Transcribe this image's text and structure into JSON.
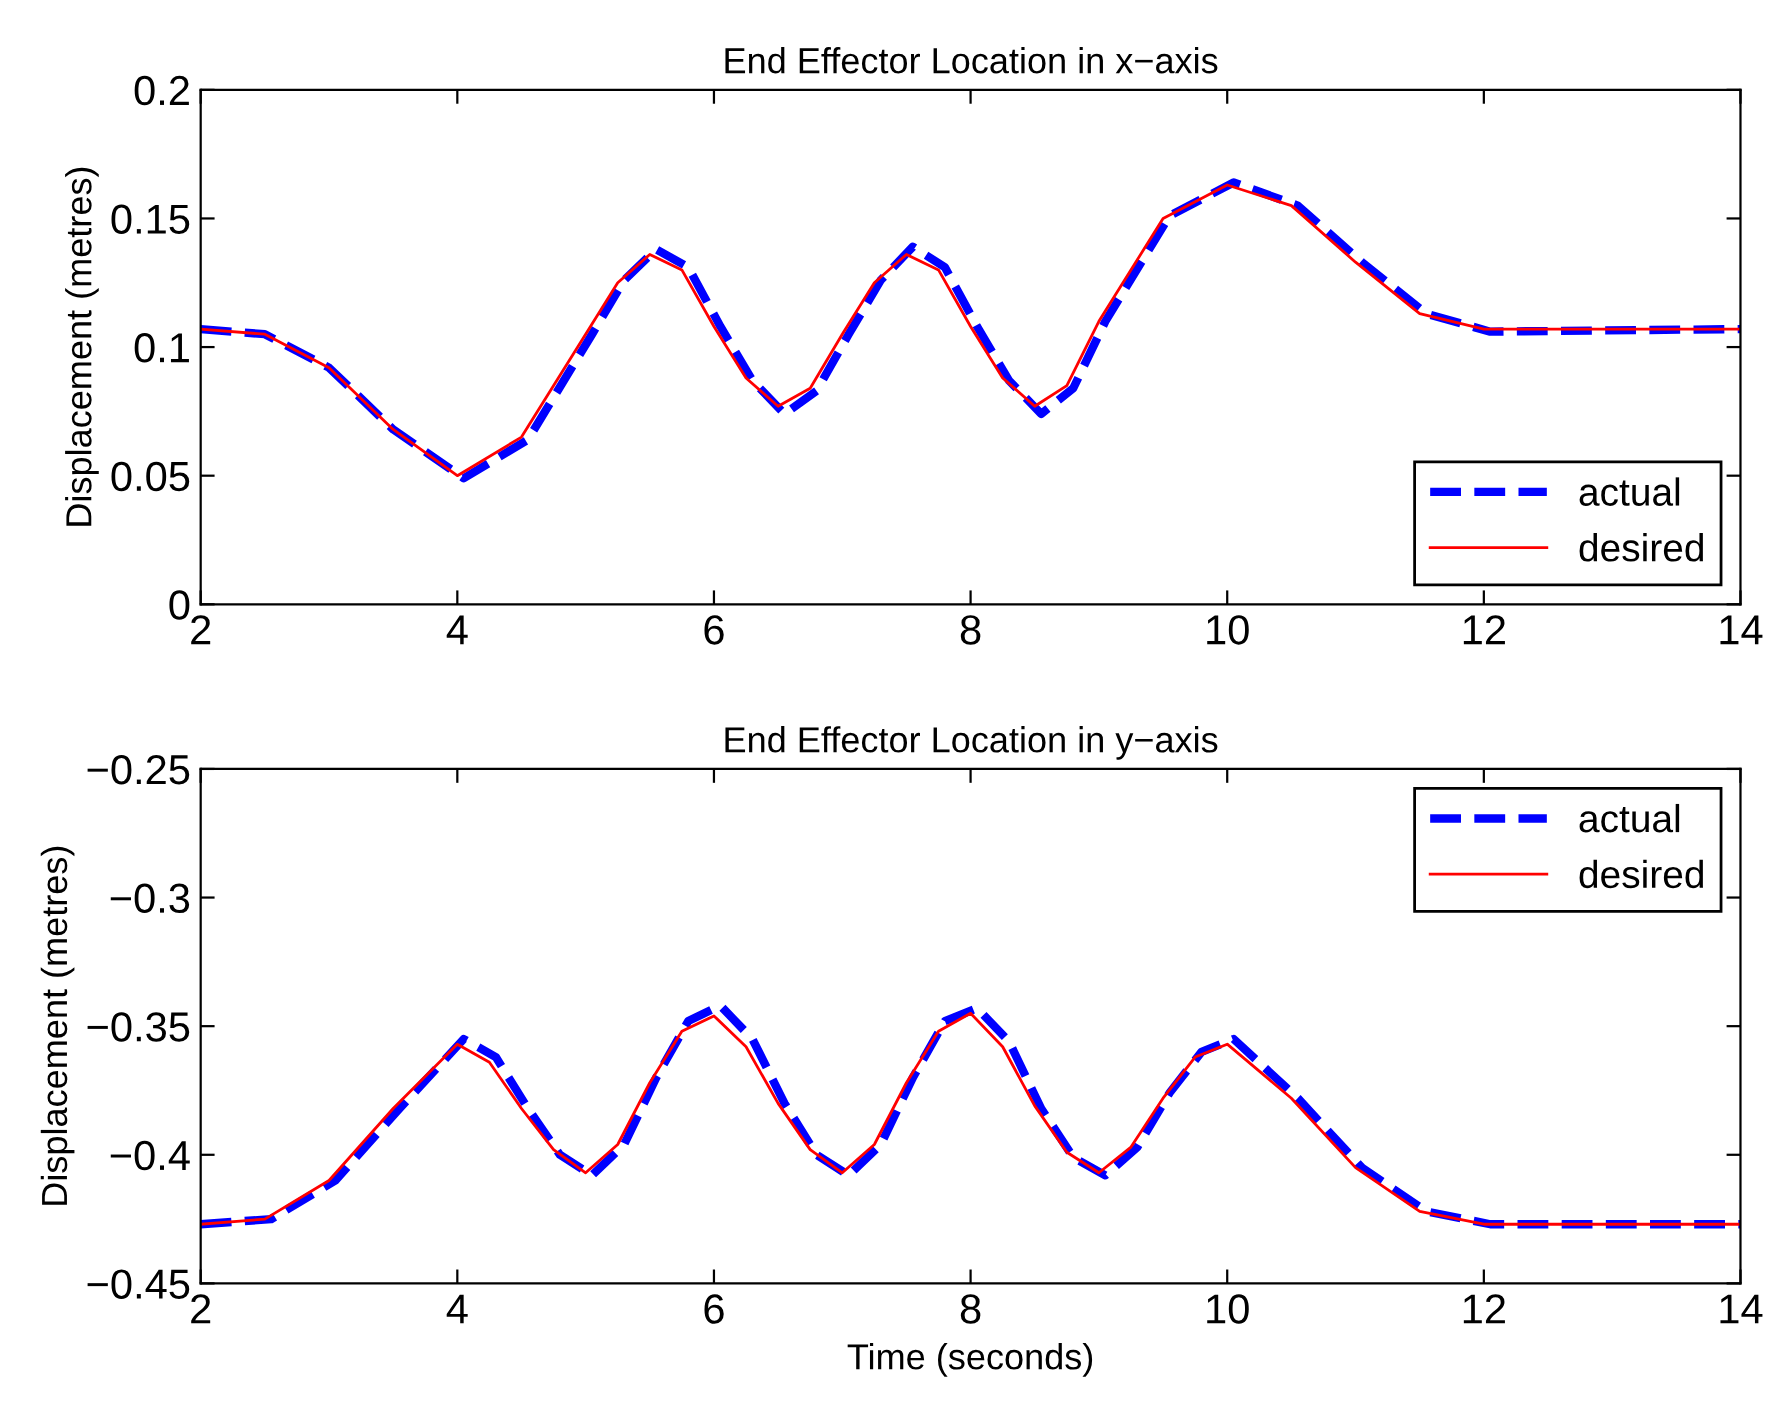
{
  "chart_data": [
    {
      "type": "line",
      "title": "End Effector Location in x−axis",
      "ylabel": "Displacement (metres)",
      "xlim": [
        2,
        14
      ],
      "xticks": [
        2,
        4,
        6,
        8,
        10,
        12,
        14
      ],
      "ylim": [
        0,
        0.2
      ],
      "yticks": [
        0,
        0.05,
        0.1,
        0.15,
        0.2
      ],
      "legend": "bottom right",
      "grid": false,
      "series": [
        {
          "name": "actual",
          "color": "#0000ff",
          "line_style": "dashed",
          "x": [
            2,
            2.5,
            3,
            3.5,
            4.05,
            4.55,
            5.05,
            5.3,
            5.55,
            5.8,
            6.05,
            6.3,
            6.55,
            6.8,
            7.05,
            7.3,
            7.55,
            7.8,
            8.05,
            8.3,
            8.55,
            8.8,
            9.05,
            9.55,
            10.05,
            10.55,
            11.05,
            11.55,
            12.05,
            14
          ],
          "values": [
            0.107,
            0.105,
            0.092,
            0.068,
            0.049,
            0.064,
            0.105,
            0.126,
            0.138,
            0.131,
            0.108,
            0.087,
            0.074,
            0.083,
            0.105,
            0.126,
            0.139,
            0.131,
            0.108,
            0.087,
            0.074,
            0.084,
            0.11,
            0.151,
            0.164,
            0.155,
            0.133,
            0.113,
            0.106,
            0.107
          ]
        },
        {
          "name": "desired",
          "color": "#ff0000",
          "line_style": "solid",
          "x": [
            2,
            2.5,
            3,
            3.5,
            4,
            4.5,
            5,
            5.25,
            5.5,
            5.75,
            6,
            6.25,
            6.5,
            6.75,
            7,
            7.25,
            7.5,
            7.75,
            8,
            8.25,
            8.5,
            8.75,
            9,
            9.5,
            10,
            10.5,
            11,
            11.5,
            12,
            14
          ],
          "values": [
            0.107,
            0.105,
            0.092,
            0.068,
            0.05,
            0.065,
            0.105,
            0.125,
            0.136,
            0.13,
            0.108,
            0.088,
            0.077,
            0.084,
            0.105,
            0.125,
            0.136,
            0.13,
            0.108,
            0.088,
            0.077,
            0.085,
            0.11,
            0.15,
            0.163,
            0.155,
            0.133,
            0.113,
            0.107,
            0.107
          ]
        }
      ]
    },
    {
      "type": "line",
      "title": "End Effector Location in y−axis",
      "xlabel": "Time (seconds)",
      "ylabel": "Displacement (metres)",
      "xlim": [
        2,
        14
      ],
      "xticks": [
        2,
        4,
        6,
        8,
        10,
        12,
        14
      ],
      "ylim": [
        -0.45,
        -0.25
      ],
      "yticks": [
        -0.45,
        -0.4,
        -0.35,
        -0.3,
        -0.25
      ],
      "legend": "top right",
      "grid": false,
      "series": [
        {
          "name": "actual",
          "color": "#0000ff",
          "line_style": "dashed",
          "x": [
            2,
            2.55,
            3.05,
            3.55,
            4.05,
            4.3,
            4.55,
            4.8,
            5.05,
            5.3,
            5.55,
            5.8,
            6.05,
            6.3,
            6.55,
            6.8,
            7.05,
            7.3,
            7.55,
            7.8,
            8.05,
            8.3,
            8.55,
            8.8,
            9.05,
            9.3,
            9.55,
            9.8,
            10.05,
            10.55,
            11.05,
            11.55,
            12.05,
            14
          ],
          "values": [
            -0.427,
            -0.425,
            -0.41,
            -0.382,
            -0.355,
            -0.362,
            -0.382,
            -0.4,
            -0.408,
            -0.396,
            -0.37,
            -0.348,
            -0.342,
            -0.355,
            -0.38,
            -0.4,
            -0.408,
            -0.396,
            -0.37,
            -0.348,
            -0.343,
            -0.356,
            -0.382,
            -0.401,
            -0.408,
            -0.397,
            -0.376,
            -0.36,
            -0.355,
            -0.378,
            -0.405,
            -0.422,
            -0.427,
            -0.427
          ]
        },
        {
          "name": "desired",
          "color": "#ff0000",
          "line_style": "solid",
          "x": [
            2,
            2.5,
            3,
            3.5,
            4,
            4.25,
            4.5,
            4.75,
            5,
            5.25,
            5.5,
            5.75,
            6,
            6.25,
            6.5,
            6.75,
            7,
            7.25,
            7.5,
            7.75,
            8,
            8.25,
            8.5,
            8.75,
            9,
            9.25,
            9.5,
            9.75,
            10,
            10.5,
            11,
            11.5,
            12,
            14
          ],
          "values": [
            -0.427,
            -0.425,
            -0.41,
            -0.382,
            -0.357,
            -0.364,
            -0.382,
            -0.398,
            -0.407,
            -0.396,
            -0.372,
            -0.352,
            -0.346,
            -0.358,
            -0.38,
            -0.398,
            -0.407,
            -0.396,
            -0.372,
            -0.352,
            -0.345,
            -0.358,
            -0.381,
            -0.399,
            -0.407,
            -0.397,
            -0.378,
            -0.362,
            -0.357,
            -0.378,
            -0.405,
            -0.422,
            -0.427,
            -0.427
          ]
        }
      ]
    }
  ]
}
